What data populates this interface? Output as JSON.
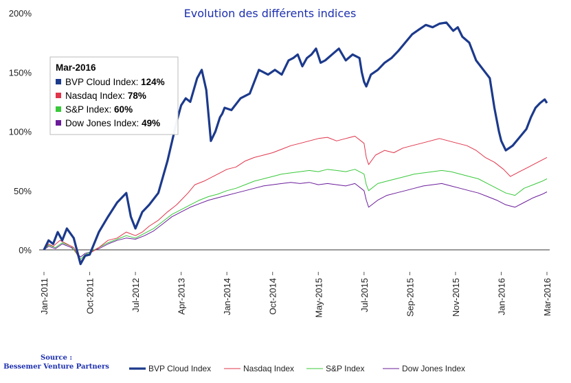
{
  "title": "Evolution des différents indices",
  "source": {
    "line1": "Source :",
    "line2": "Bessemer Venture Partners"
  },
  "colors": {
    "bvp": "#1c3a8c",
    "nasdaq": "#e0344a",
    "sp": "#38c83a",
    "dow": "#6a1b9a"
  },
  "tooltip": {
    "title": "Mar-2016",
    "rows": [
      {
        "label": "BVP Cloud Index:",
        "value": "124%",
        "color": "#1c3a8c"
      },
      {
        "label": "Nasdaq Index:",
        "value": "78%",
        "color": "#e0344a"
      },
      {
        "label": "S&P Index:",
        "value": "60%",
        "color": "#38c83a"
      },
      {
        "label": "Dow Jones Index:",
        "value": "49%",
        "color": "#6a1b9a"
      }
    ]
  },
  "chart_data": {
    "type": "line",
    "title": "Evolution des différents indices",
    "xlabel": "",
    "ylabel": "",
    "ylim": [
      -30,
      200
    ],
    "yticks": [
      "0%",
      "50%",
      "100%",
      "150%",
      "200%"
    ],
    "ytick_values": [
      0,
      50,
      100,
      150,
      200
    ],
    "x_tick_labels": [
      "Jan-2011",
      "Oct-2011",
      "Jul-2012",
      "Apr-2013",
      "Jan-2014",
      "Oct-2014",
      "May-2015",
      "Jul-2015",
      "Sep-2015",
      "Nov-2015",
      "Jan-2016",
      "Mar-2016"
    ],
    "legend_position": "bottom",
    "grid": false,
    "series": [
      {
        "name": "BVP Cloud Index",
        "color": "#1c3a8c",
        "points": [
          [
            0,
            0
          ],
          [
            0.1,
            8
          ],
          [
            0.2,
            5
          ],
          [
            0.3,
            15
          ],
          [
            0.4,
            8
          ],
          [
            0.5,
            18
          ],
          [
            0.65,
            10
          ],
          [
            0.8,
            -12
          ],
          [
            0.9,
            -5
          ],
          [
            1.0,
            -4
          ],
          [
            1.2,
            15
          ],
          [
            1.4,
            28
          ],
          [
            1.6,
            40
          ],
          [
            1.8,
            48
          ],
          [
            1.9,
            28
          ],
          [
            2.0,
            18
          ],
          [
            2.15,
            32
          ],
          [
            2.3,
            38
          ],
          [
            2.5,
            48
          ],
          [
            2.7,
            75
          ],
          [
            2.9,
            108
          ],
          [
            3.0,
            122
          ],
          [
            3.1,
            128
          ],
          [
            3.2,
            125
          ],
          [
            3.35,
            145
          ],
          [
            3.45,
            152
          ],
          [
            3.55,
            135
          ],
          [
            3.65,
            92
          ],
          [
            3.75,
            100
          ],
          [
            3.85,
            112
          ],
          [
            3.9,
            115
          ],
          [
            3.95,
            120
          ],
          [
            4.1,
            118
          ],
          [
            4.3,
            128
          ],
          [
            4.5,
            132
          ],
          [
            4.7,
            152
          ],
          [
            4.9,
            148
          ],
          [
            5.05,
            152
          ],
          [
            5.2,
            148
          ],
          [
            5.35,
            160
          ],
          [
            5.45,
            162
          ],
          [
            5.55,
            165
          ],
          [
            5.65,
            155
          ],
          [
            5.75,
            162
          ],
          [
            5.85,
            165
          ],
          [
            5.95,
            170
          ],
          [
            6.05,
            158
          ],
          [
            6.15,
            160
          ],
          [
            6.3,
            165
          ],
          [
            6.45,
            170
          ],
          [
            6.6,
            160
          ],
          [
            6.75,
            165
          ],
          [
            6.9,
            162
          ],
          [
            6.95,
            150
          ],
          [
            7.0,
            142
          ],
          [
            7.05,
            138
          ],
          [
            7.15,
            148
          ],
          [
            7.3,
            152
          ],
          [
            7.45,
            158
          ],
          [
            7.6,
            162
          ],
          [
            7.75,
            168
          ],
          [
            7.9,
            175
          ],
          [
            8.05,
            182
          ],
          [
            8.2,
            186
          ],
          [
            8.35,
            190
          ],
          [
            8.5,
            188
          ],
          [
            8.65,
            191
          ],
          [
            8.8,
            192
          ],
          [
            8.95,
            185
          ],
          [
            9.05,
            188
          ],
          [
            9.15,
            180
          ],
          [
            9.3,
            175
          ],
          [
            9.45,
            160
          ],
          [
            9.55,
            155
          ],
          [
            9.65,
            150
          ],
          [
            9.75,
            145
          ],
          [
            9.85,
            120
          ],
          [
            9.95,
            100
          ],
          [
            10.0,
            92
          ],
          [
            10.1,
            84
          ],
          [
            10.25,
            88
          ],
          [
            10.4,
            95
          ],
          [
            10.55,
            102
          ],
          [
            10.65,
            112
          ],
          [
            10.75,
            120
          ],
          [
            10.85,
            124
          ],
          [
            10.95,
            127
          ],
          [
            11.0,
            124
          ]
        ]
      },
      {
        "name": "Nasdaq Index",
        "color": "#e0344a",
        "points": [
          [
            0,
            0
          ],
          [
            0.1,
            5
          ],
          [
            0.2,
            3
          ],
          [
            0.35,
            8
          ],
          [
            0.5,
            5
          ],
          [
            0.65,
            2
          ],
          [
            0.8,
            -10
          ],
          [
            0.9,
            -5
          ],
          [
            1.0,
            -3
          ],
          [
            1.2,
            2
          ],
          [
            1.4,
            8
          ],
          [
            1.6,
            10
          ],
          [
            1.8,
            15
          ],
          [
            2.0,
            12
          ],
          [
            2.15,
            15
          ],
          [
            2.3,
            20
          ],
          [
            2.5,
            25
          ],
          [
            2.7,
            32
          ],
          [
            2.9,
            38
          ],
          [
            3.0,
            42
          ],
          [
            3.15,
            48
          ],
          [
            3.3,
            55
          ],
          [
            3.5,
            58
          ],
          [
            3.7,
            62
          ],
          [
            3.85,
            65
          ],
          [
            4.0,
            68
          ],
          [
            4.2,
            70
          ],
          [
            4.4,
            75
          ],
          [
            4.6,
            78
          ],
          [
            4.8,
            80
          ],
          [
            5.0,
            82
          ],
          [
            5.2,
            85
          ],
          [
            5.4,
            88
          ],
          [
            5.6,
            90
          ],
          [
            5.8,
            92
          ],
          [
            6.0,
            94
          ],
          [
            6.2,
            95
          ],
          [
            6.4,
            92
          ],
          [
            6.6,
            94
          ],
          [
            6.8,
            96
          ],
          [
            7.0,
            90
          ],
          [
            7.05,
            78
          ],
          [
            7.1,
            72
          ],
          [
            7.25,
            80
          ],
          [
            7.45,
            84
          ],
          [
            7.65,
            82
          ],
          [
            7.85,
            86
          ],
          [
            8.05,
            88
          ],
          [
            8.25,
            90
          ],
          [
            8.45,
            92
          ],
          [
            8.65,
            94
          ],
          [
            8.85,
            92
          ],
          [
            9.05,
            90
          ],
          [
            9.25,
            88
          ],
          [
            9.45,
            84
          ],
          [
            9.65,
            78
          ],
          [
            9.85,
            74
          ],
          [
            10.05,
            68
          ],
          [
            10.2,
            62
          ],
          [
            10.4,
            66
          ],
          [
            10.6,
            70
          ],
          [
            10.8,
            74
          ],
          [
            11.0,
            78
          ]
        ]
      },
      {
        "name": "S&P Index",
        "color": "#38c83a",
        "points": [
          [
            0,
            0
          ],
          [
            0.1,
            4
          ],
          [
            0.25,
            2
          ],
          [
            0.4,
            6
          ],
          [
            0.6,
            3
          ],
          [
            0.8,
            -8
          ],
          [
            0.9,
            -4
          ],
          [
            1.0,
            -2
          ],
          [
            1.2,
            2
          ],
          [
            1.4,
            6
          ],
          [
            1.6,
            9
          ],
          [
            1.8,
            12
          ],
          [
            2.0,
            10
          ],
          [
            2.2,
            14
          ],
          [
            2.4,
            18
          ],
          [
            2.6,
            24
          ],
          [
            2.8,
            30
          ],
          [
            3.0,
            34
          ],
          [
            3.2,
            38
          ],
          [
            3.4,
            42
          ],
          [
            3.6,
            45
          ],
          [
            3.8,
            47
          ],
          [
            4.0,
            50
          ],
          [
            4.2,
            52
          ],
          [
            4.4,
            55
          ],
          [
            4.6,
            58
          ],
          [
            4.8,
            60
          ],
          [
            5.0,
            62
          ],
          [
            5.2,
            64
          ],
          [
            5.4,
            65
          ],
          [
            5.6,
            66
          ],
          [
            5.8,
            67
          ],
          [
            6.0,
            66
          ],
          [
            6.2,
            68
          ],
          [
            6.4,
            67
          ],
          [
            6.6,
            66
          ],
          [
            6.8,
            68
          ],
          [
            7.0,
            64
          ],
          [
            7.05,
            55
          ],
          [
            7.1,
            50
          ],
          [
            7.3,
            56
          ],
          [
            7.5,
            58
          ],
          [
            7.7,
            60
          ],
          [
            7.9,
            62
          ],
          [
            8.1,
            64
          ],
          [
            8.3,
            65
          ],
          [
            8.5,
            66
          ],
          [
            8.7,
            67
          ],
          [
            8.9,
            66
          ],
          [
            9.1,
            64
          ],
          [
            9.3,
            62
          ],
          [
            9.5,
            60
          ],
          [
            9.7,
            56
          ],
          [
            9.9,
            52
          ],
          [
            10.1,
            48
          ],
          [
            10.3,
            46
          ],
          [
            10.5,
            52
          ],
          [
            10.7,
            55
          ],
          [
            10.9,
            58
          ],
          [
            11.0,
            60
          ]
        ]
      },
      {
        "name": "Dow Jones Index",
        "color": "#6a1b9a",
        "points": [
          [
            0,
            0
          ],
          [
            0.1,
            3
          ],
          [
            0.25,
            1
          ],
          [
            0.4,
            5
          ],
          [
            0.6,
            2
          ],
          [
            0.8,
            -6
          ],
          [
            0.9,
            -3
          ],
          [
            1.0,
            -2
          ],
          [
            1.2,
            1
          ],
          [
            1.4,
            5
          ],
          [
            1.6,
            8
          ],
          [
            1.8,
            10
          ],
          [
            2.0,
            9
          ],
          [
            2.2,
            12
          ],
          [
            2.4,
            16
          ],
          [
            2.6,
            22
          ],
          [
            2.8,
            28
          ],
          [
            3.0,
            32
          ],
          [
            3.2,
            36
          ],
          [
            3.4,
            39
          ],
          [
            3.6,
            42
          ],
          [
            3.8,
            44
          ],
          [
            4.0,
            46
          ],
          [
            4.2,
            48
          ],
          [
            4.4,
            50
          ],
          [
            4.6,
            52
          ],
          [
            4.8,
            54
          ],
          [
            5.0,
            55
          ],
          [
            5.2,
            56
          ],
          [
            5.4,
            57
          ],
          [
            5.6,
            56
          ],
          [
            5.8,
            57
          ],
          [
            6.0,
            55
          ],
          [
            6.2,
            56
          ],
          [
            6.4,
            55
          ],
          [
            6.6,
            54
          ],
          [
            6.8,
            56
          ],
          [
            7.0,
            50
          ],
          [
            7.05,
            42
          ],
          [
            7.1,
            36
          ],
          [
            7.3,
            42
          ],
          [
            7.5,
            46
          ],
          [
            7.7,
            48
          ],
          [
            7.9,
            50
          ],
          [
            8.1,
            52
          ],
          [
            8.3,
            54
          ],
          [
            8.5,
            55
          ],
          [
            8.7,
            56
          ],
          [
            8.9,
            54
          ],
          [
            9.1,
            52
          ],
          [
            9.3,
            50
          ],
          [
            9.5,
            48
          ],
          [
            9.7,
            45
          ],
          [
            9.9,
            42
          ],
          [
            10.1,
            38
          ],
          [
            10.3,
            36
          ],
          [
            10.5,
            40
          ],
          [
            10.7,
            44
          ],
          [
            10.9,
            47
          ],
          [
            11.0,
            49
          ]
        ]
      }
    ]
  }
}
